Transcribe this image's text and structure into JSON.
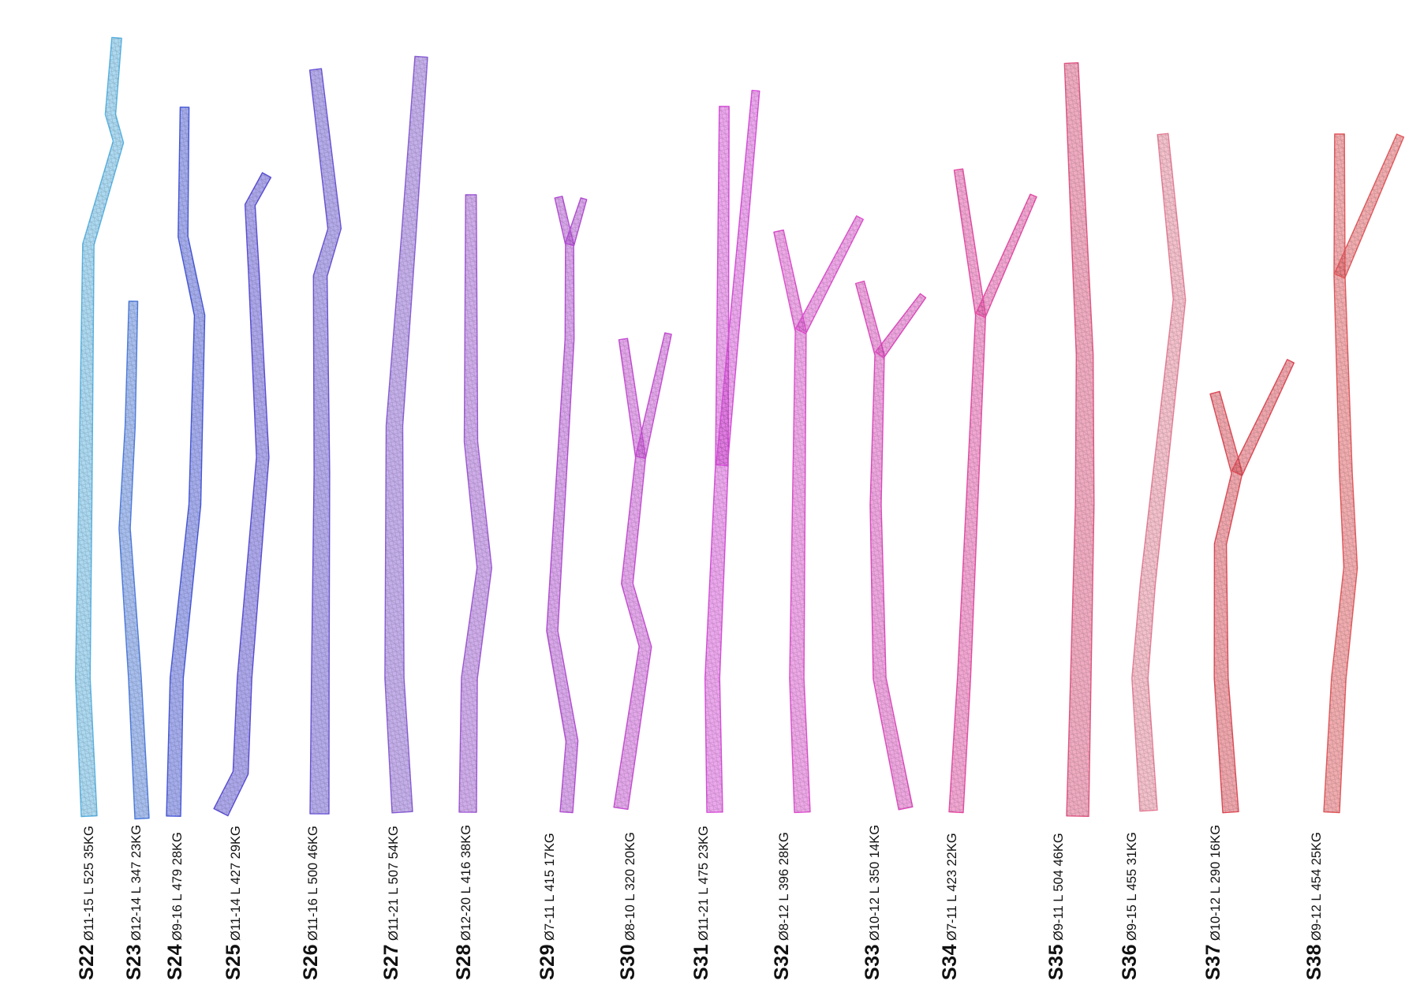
{
  "colors": {
    "S22": "#5ab4e4",
    "S23": "#4f7de0",
    "S24": "#4758da",
    "S25": "#5a4fd8",
    "S26": "#6a55d8",
    "S27": "#8a5fd8",
    "S28": "#a05ad8",
    "S29": "#b54fd6",
    "S30": "#c94fd6",
    "S31": "#d94fdc",
    "S32": "#e050d0",
    "S33": "#e04cc0",
    "S34": "#e64ea6",
    "S35": "#e25784",
    "S36": "#e88098",
    "S37": "#e04c58",
    "S38": "#e45a5e"
  },
  "branches": [
    {
      "id": "S22",
      "specs": "Ø11-15  L 525  35KG",
      "branches": 1,
      "dia": "11-15",
      "length": 525,
      "weight": 35
    },
    {
      "id": "S23",
      "specs": "Ø12-14  L 347  23KG",
      "branches": 1,
      "dia": "12-14",
      "length": 347,
      "weight": 23
    },
    {
      "id": "S24",
      "specs": "Ø9-16  L 479  28KG",
      "branches": 1,
      "dia": "9-16",
      "length": 479,
      "weight": 28
    },
    {
      "id": "S25",
      "specs": "Ø11-14  L 427  29KG",
      "branches": 1,
      "dia": "11-14",
      "length": 427,
      "weight": 29
    },
    {
      "id": "S26",
      "specs": "Ø11-16  L 500  46KG",
      "branches": 1,
      "dia": "11-16",
      "length": 500,
      "weight": 46
    },
    {
      "id": "S27",
      "specs": "Ø11-21  L 507  54KG",
      "branches": 1,
      "dia": "11-21",
      "length": 507,
      "weight": 54
    },
    {
      "id": "S28",
      "specs": "Ø12-20  L 416  38KG",
      "branches": 1,
      "dia": "12-20",
      "length": 416,
      "weight": 38
    },
    {
      "id": "S29",
      "specs": "Ø7-11  L 415  17KG",
      "branches": 2,
      "dia": "7-11",
      "length": 415,
      "weight": 17
    },
    {
      "id": "S30",
      "specs": "Ø8-10  L 320  20KG",
      "branches": 2,
      "dia": "8-10",
      "length": 320,
      "weight": 20
    },
    {
      "id": "S31",
      "specs": "Ø11-21  L 475  23KG",
      "branches": 2,
      "dia": "11-21",
      "length": 475,
      "weight": 23
    },
    {
      "id": "S32",
      "specs": "Ø8-12  L 396  28KG",
      "branches": 2,
      "dia": "8-12",
      "length": 396,
      "weight": 28
    },
    {
      "id": "S33",
      "specs": "Ø10-12  L 350  14KG",
      "branches": 2,
      "dia": "10-12",
      "length": 350,
      "weight": 14
    },
    {
      "id": "S34",
      "specs": "Ø7-11  L 423  22KG",
      "branches": 2,
      "dia": "7-11",
      "length": 423,
      "weight": 22
    },
    {
      "id": "S35",
      "specs": "Ø9-11  L 504  46KG",
      "branches": 1,
      "dia": "9-11",
      "length": 504,
      "weight": 46
    },
    {
      "id": "S36",
      "specs": "Ø9-15  L 455  31KG",
      "branches": 1,
      "dia": "9-15",
      "length": 455,
      "weight": 31
    },
    {
      "id": "S37",
      "specs": "Ø10-12  L 290  16KG",
      "branches": 2,
      "dia": "10-12",
      "length": 290,
      "weight": 16
    },
    {
      "id": "S38",
      "specs": "Ø9-12  L 454  25KG",
      "branches": 2,
      "dia": "9-12",
      "length": 454,
      "weight": 25
    }
  ]
}
